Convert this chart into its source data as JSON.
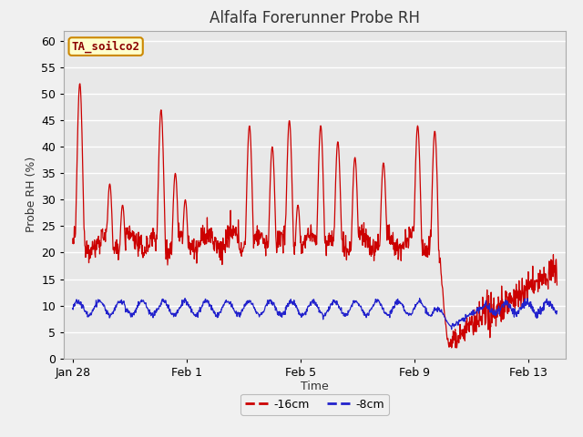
{
  "title": "Alfalfa Forerunner Probe RH",
  "xlabel": "Time",
  "ylabel": "Probe RH (%)",
  "ylim": [
    0,
    62
  ],
  "yticks": [
    0,
    5,
    10,
    15,
    20,
    25,
    30,
    35,
    40,
    45,
    50,
    55,
    60
  ],
  "fig_bg_color": "#f0f0f0",
  "plot_bg_color": "#e8e8e8",
  "grid_color": "#ffffff",
  "line1_color": "#cc0000",
  "line2_color": "#2222cc",
  "legend_label1": "-16cm",
  "legend_label2": "-8cm",
  "station_label": "TA_soilco2",
  "station_label_bg": "#ffffcc",
  "station_label_border": "#cc8800",
  "title_fontsize": 12,
  "axis_label_fontsize": 9,
  "tick_fontsize": 9,
  "legend_fontsize": 9,
  "xtick_labels": [
    "Jan 28",
    "Feb 1",
    "Feb 5",
    "Feb 9",
    "Feb 13"
  ],
  "xtick_positions": [
    0,
    4,
    8,
    12,
    16
  ],
  "xlim": [
    -0.3,
    17.3
  ],
  "total_days": 17
}
